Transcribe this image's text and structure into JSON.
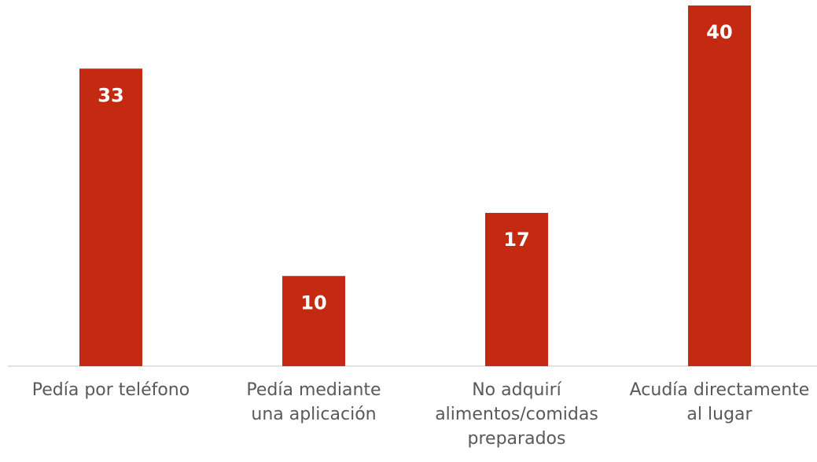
{
  "chart_data": {
    "type": "bar",
    "categories": [
      "Pedía por teléfono",
      "Pedía mediante una aplicación",
      "No adquirí alimentos/comidas preparados",
      "Acudía directamente al lugar"
    ],
    "values": [
      33,
      10,
      17,
      40
    ],
    "color": "#c42a12",
    "ylim": [
      0,
      40
    ]
  }
}
